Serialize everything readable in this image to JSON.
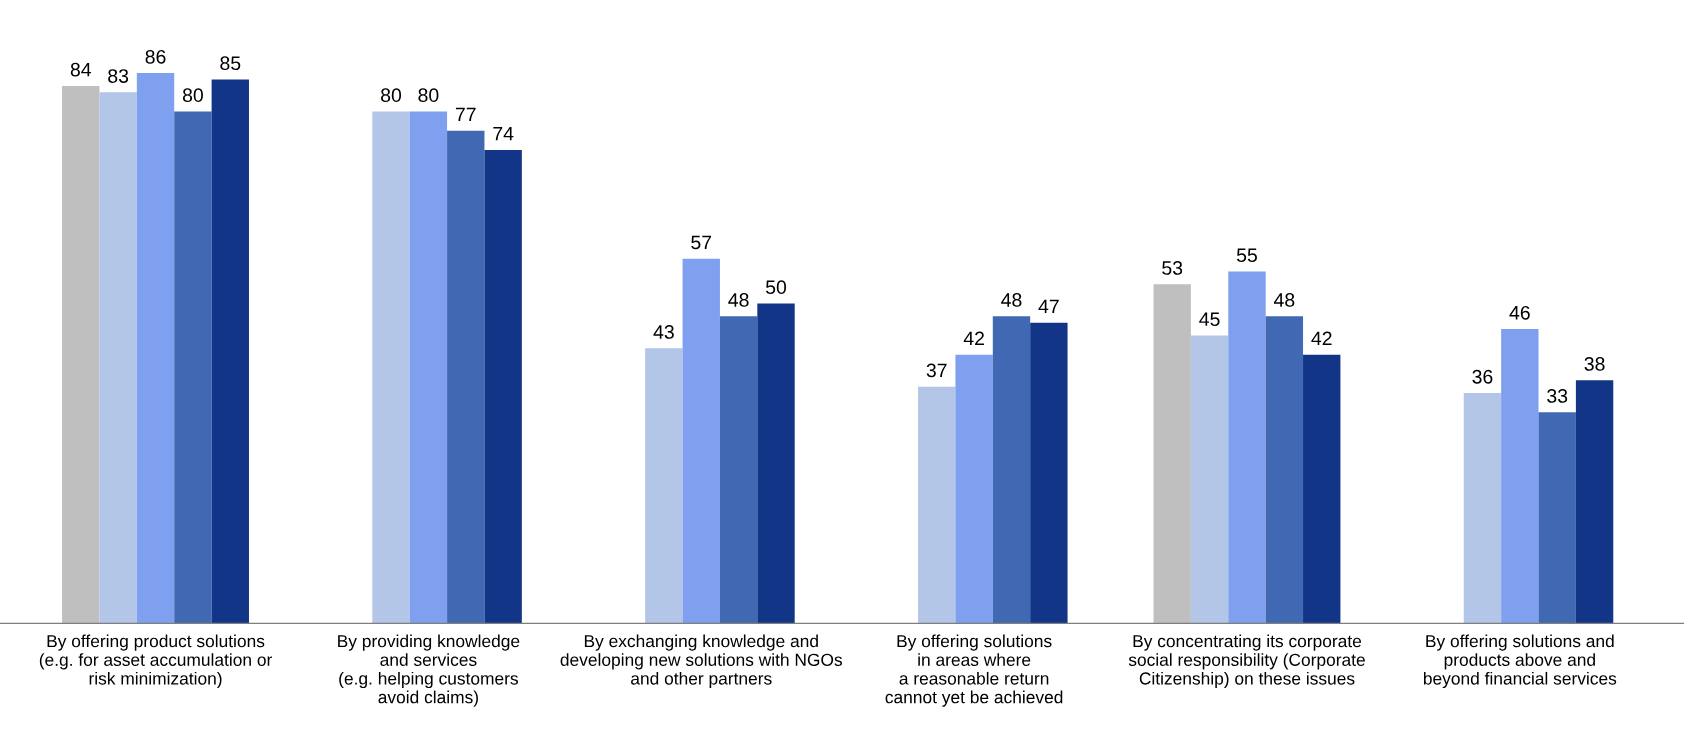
{
  "chart_data": {
    "type": "bar",
    "categories": [
      "By offering product solutions\n(e.g. for asset accumulation or\nrisk minimization)",
      "By providing knowledge\nand services\n(e.g. helping customers\navoid claims)",
      "By exchanging knowledge and\ndeveloping new solutions with NGOs\nand other partners",
      "By offering solutions\nin areas where\na reasonable return\ncannot yet be achieved",
      "By concentrating its corporate\nsocial responsibility (Corporate\nCitizenship) on these issues",
      "By offering solutions and\nproducts above and\nbeyond financial services"
    ],
    "series": [
      {
        "color": "#bfbfbf",
        "values": [
          84,
          null,
          null,
          null,
          53,
          null
        ]
      },
      {
        "color": "#b4c6e7",
        "values": [
          83,
          80,
          43,
          37,
          45,
          36
        ]
      },
      {
        "color": "#7fa0ee",
        "values": [
          86,
          80,
          57,
          42,
          55,
          46
        ]
      },
      {
        "color": "#4169b3",
        "values": [
          80,
          77,
          48,
          48,
          48,
          33
        ]
      },
      {
        "color": "#133587",
        "values": [
          85,
          74,
          50,
          47,
          42,
          38
        ]
      }
    ],
    "data_labels": true,
    "grid": false,
    "legend": false
  }
}
